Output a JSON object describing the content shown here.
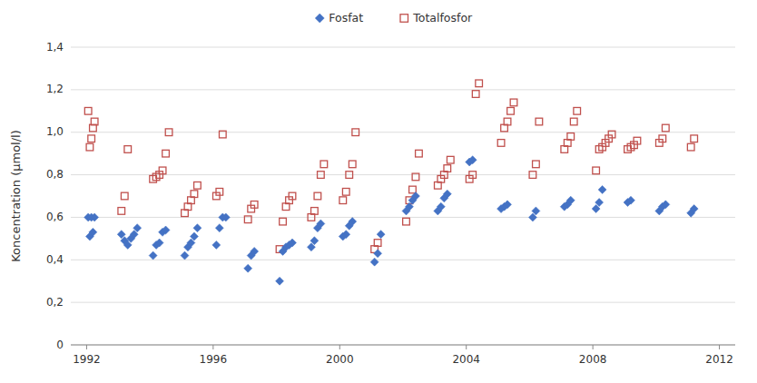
{
  "chart_data": {
    "type": "scatter",
    "ylabel": "Koncentration (μmol/l)",
    "series": [
      {
        "name": "Fosfat",
        "color": "#4472C4",
        "marker": "diamond",
        "x": [
          1992.05,
          1992.1,
          1992.15,
          1992.2,
          1992.25,
          1993.1,
          1993.2,
          1993.3,
          1993.4,
          1993.5,
          1993.6,
          1994.1,
          1994.2,
          1994.3,
          1994.4,
          1994.5,
          1995.1,
          1995.2,
          1995.3,
          1995.4,
          1995.5,
          1996.1,
          1996.2,
          1996.3,
          1996.4,
          1997.1,
          1997.2,
          1997.3,
          1998.1,
          1998.2,
          1998.3,
          1998.4,
          1998.5,
          1999.1,
          1999.2,
          1999.3,
          1999.4,
          2000.1,
          2000.2,
          2000.3,
          2000.4,
          2001.1,
          2001.2,
          2001.3,
          2002.1,
          2002.2,
          2002.3,
          2002.4,
          2003.1,
          2003.2,
          2003.3,
          2003.4,
          2004.1,
          2004.2,
          2005.1,
          2005.2,
          2005.3,
          2006.1,
          2006.2,
          2007.1,
          2007.2,
          2007.3,
          2008.1,
          2008.2,
          2008.3,
          2009.1,
          2009.2,
          2010.1,
          2010.2,
          2010.3,
          2011.1,
          2011.2
        ],
        "values": [
          0.6,
          0.51,
          0.6,
          0.53,
          0.6,
          0.52,
          0.49,
          0.47,
          0.5,
          0.52,
          0.55,
          0.42,
          0.47,
          0.48,
          0.53,
          0.54,
          0.42,
          0.46,
          0.48,
          0.51,
          0.55,
          0.47,
          0.55,
          0.6,
          0.6,
          0.36,
          0.42,
          0.44,
          0.3,
          0.44,
          0.46,
          0.47,
          0.48,
          0.46,
          0.49,
          0.55,
          0.57,
          0.51,
          0.52,
          0.56,
          0.58,
          0.39,
          0.43,
          0.52,
          0.63,
          0.65,
          0.68,
          0.7,
          0.63,
          0.65,
          0.69,
          0.71,
          0.86,
          0.87,
          0.64,
          0.65,
          0.66,
          0.6,
          0.63,
          0.65,
          0.66,
          0.68,
          0.64,
          0.67,
          0.73,
          0.67,
          0.68,
          0.63,
          0.65,
          0.66,
          0.62,
          0.64
        ]
      },
      {
        "name": "Totalfosfor",
        "color": "#C0504D",
        "marker": "square-open",
        "x": [
          1992.05,
          1992.1,
          1992.15,
          1992.2,
          1992.25,
          1993.1,
          1993.2,
          1993.3,
          1994.1,
          1994.2,
          1994.3,
          1994.4,
          1994.5,
          1994.6,
          1995.1,
          1995.2,
          1995.3,
          1995.4,
          1995.5,
          1996.1,
          1996.2,
          1996.3,
          1997.1,
          1997.2,
          1997.3,
          1998.1,
          1998.2,
          1998.3,
          1998.4,
          1998.5,
          1999.1,
          1999.2,
          1999.3,
          1999.4,
          1999.5,
          2000.1,
          2000.2,
          2000.3,
          2000.4,
          2000.5,
          2001.1,
          2001.2,
          2002.1,
          2002.2,
          2002.3,
          2002.4,
          2002.5,
          2003.1,
          2003.2,
          2003.3,
          2003.4,
          2003.5,
          2004.1,
          2004.2,
          2004.3,
          2004.4,
          2005.1,
          2005.2,
          2005.3,
          2005.4,
          2005.5,
          2006.1,
          2006.2,
          2006.3,
          2007.1,
          2007.2,
          2007.3,
          2007.4,
          2007.5,
          2008.1,
          2008.2,
          2008.3,
          2008.4,
          2008.5,
          2008.6,
          2009.1,
          2009.2,
          2009.3,
          2009.4,
          2010.1,
          2010.2,
          2010.3,
          2011.1,
          2011.2
        ],
        "values": [
          1.1,
          0.93,
          0.97,
          1.02,
          1.05,
          0.63,
          0.7,
          0.92,
          0.78,
          0.79,
          0.8,
          0.82,
          0.9,
          1.0,
          0.62,
          0.65,
          0.68,
          0.71,
          0.75,
          0.7,
          0.72,
          0.99,
          0.59,
          0.64,
          0.66,
          0.45,
          0.58,
          0.65,
          0.68,
          0.7,
          0.6,
          0.63,
          0.7,
          0.8,
          0.85,
          0.68,
          0.72,
          0.8,
          0.85,
          1.0,
          0.45,
          0.48,
          0.58,
          0.68,
          0.73,
          0.79,
          0.9,
          0.75,
          0.78,
          0.8,
          0.83,
          0.87,
          0.78,
          0.8,
          1.18,
          1.23,
          0.95,
          1.02,
          1.05,
          1.1,
          1.14,
          0.8,
          0.85,
          1.05,
          0.92,
          0.95,
          0.98,
          1.05,
          1.1,
          0.82,
          0.92,
          0.93,
          0.95,
          0.97,
          0.99,
          0.92,
          0.93,
          0.94,
          0.96,
          0.95,
          0.97,
          1.02,
          0.93,
          0.97
        ]
      }
    ],
    "xlim": [
      1991.5,
      2012.5
    ],
    "ylim": [
      0,
      1.4
    ],
    "xticks": [
      1992,
      1996,
      2000,
      2004,
      2008,
      2012
    ],
    "yticks": [
      0,
      {
        "value": 0.2,
        "label": "0,2"
      },
      {
        "value": 0.4,
        "label": "0,4"
      },
      {
        "value": 0.6,
        "label": "0,6"
      },
      {
        "value": 0.8,
        "label": "0,8"
      },
      {
        "value": 1.0,
        "label": "1,0"
      },
      {
        "value": 1.2,
        "label": "1,2"
      },
      {
        "value": 1.4,
        "label": "1,4"
      }
    ],
    "grid": true,
    "legend": "top"
  }
}
